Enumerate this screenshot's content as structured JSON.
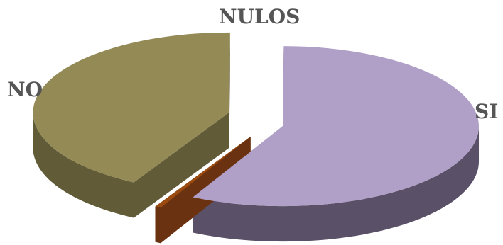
{
  "chart_data": {
    "type": "pie",
    "style": "3d-exploded",
    "title": "",
    "slices": [
      {
        "label": "SI",
        "value": 57.5,
        "color": "#b09fc7",
        "side_color": "#5a5068"
      },
      {
        "label": "NULOS",
        "value": 0.5,
        "color": "#9b4a10",
        "side_color": "#6a3210"
      },
      {
        "label": "NO",
        "value": 42.0,
        "color": "#948a56",
        "side_color": "#615b38"
      }
    ]
  }
}
